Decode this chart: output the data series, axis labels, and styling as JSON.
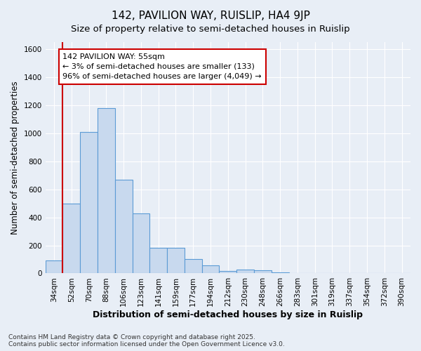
{
  "title": "142, PAVILION WAY, RUISLIP, HA4 9JP",
  "subtitle": "Size of property relative to semi-detached houses in Ruislip",
  "xlabel": "Distribution of semi-detached houses by size in Ruislip",
  "ylabel": "Number of semi-detached properties",
  "footnote1": "Contains HM Land Registry data © Crown copyright and database right 2025.",
  "footnote2": "Contains public sector information licensed under the Open Government Licence v3.0.",
  "bar_labels": [
    "34sqm",
    "52sqm",
    "70sqm",
    "88sqm",
    "106sqm",
    "123sqm",
    "141sqm",
    "159sqm",
    "177sqm",
    "194sqm",
    "212sqm",
    "230sqm",
    "248sqm",
    "266sqm",
    "283sqm",
    "301sqm",
    "319sqm",
    "337sqm",
    "354sqm",
    "372sqm",
    "390sqm"
  ],
  "bar_heights": [
    90,
    500,
    1010,
    1180,
    670,
    430,
    185,
    185,
    100,
    55,
    15,
    25,
    20,
    5,
    0,
    0,
    0,
    0,
    0,
    0,
    0
  ],
  "bar_color": "#c8d9ee",
  "bar_edge_color": "#5b9bd5",
  "red_line_x": 1,
  "annotation_line1": "142 PAVILION WAY: 55sqm",
  "annotation_line2": "← 3% of semi-detached houses are smaller (133)",
  "annotation_line3": "96% of semi-detached houses are larger (4,049) →",
  "annotation_box_color": "#ffffff",
  "annotation_box_edge": "#cc0000",
  "ylim": [
    0,
    1650
  ],
  "yticks": [
    0,
    200,
    400,
    600,
    800,
    1000,
    1200,
    1400,
    1600
  ],
  "background_color": "#e8eef6",
  "grid_color": "#ffffff",
  "title_fontsize": 11,
  "subtitle_fontsize": 9.5,
  "xlabel_fontsize": 9,
  "ylabel_fontsize": 8.5,
  "tick_fontsize": 7.5,
  "annotation_fontsize": 8,
  "footnote_fontsize": 6.5
}
